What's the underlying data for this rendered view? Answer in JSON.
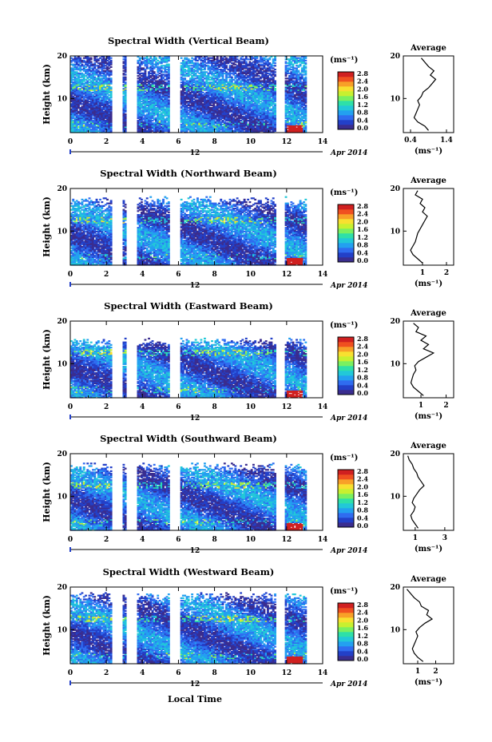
{
  "xlabel": "Local Time",
  "ylabel": "Height (km)",
  "units": "(ms⁻¹)",
  "avg_title": "Average",
  "date_tick": "12",
  "date_label": "Apr 2014",
  "x_ticks": [
    "0",
    "2",
    "4",
    "6",
    "8",
    "10",
    "12",
    "14"
  ],
  "y_ticks": [
    "10",
    "20"
  ],
  "cbar_ticks": [
    "0.0",
    "0.4",
    "0.8",
    "1.2",
    "1.6",
    "2.0",
    "2.4",
    "2.8"
  ],
  "colors": {
    "cmap": [
      "#3a2d8f",
      "#2340c8",
      "#2f6cf0",
      "#23a0f0",
      "#22c8d8",
      "#2ee0a8",
      "#7af060",
      "#c8f030",
      "#f8e030",
      "#f8a028",
      "#f05020",
      "#d02020"
    ]
  },
  "chart_data": [
    {
      "type": "heatmap",
      "title": "Spectral Width (Vertical Beam)",
      "xlim": [
        0,
        14
      ],
      "ylim": [
        2,
        20
      ],
      "zlim": [
        0,
        2.8
      ],
      "gaps": [
        [
          2.3,
          2.9
        ],
        [
          3.1,
          3.7
        ],
        [
          5.5,
          6.1
        ],
        [
          11.4,
          11.9
        ]
      ],
      "avg_xticks": [
        "0.4",
        "1.4"
      ],
      "avg_xlim": [
        0.2,
        1.6
      ],
      "avg_profile": [
        [
          0.9,
          2.5
        ],
        [
          0.8,
          3.5
        ],
        [
          0.6,
          4.5
        ],
        [
          0.5,
          5.5
        ],
        [
          0.55,
          6.5
        ],
        [
          0.6,
          7.5
        ],
        [
          0.65,
          8.5
        ],
        [
          0.6,
          9.5
        ],
        [
          0.7,
          10.5
        ],
        [
          0.75,
          11.5
        ],
        [
          0.9,
          12.5
        ],
        [
          1.0,
          13.5
        ],
        [
          1.1,
          14.5
        ],
        [
          0.95,
          15.5
        ],
        [
          1.05,
          16.5
        ],
        [
          0.9,
          17.5
        ],
        [
          0.8,
          18.5
        ],
        [
          0.7,
          19.5
        ]
      ]
    },
    {
      "type": "heatmap",
      "title": "Spectral Width (Northward Beam)",
      "xlim": [
        0,
        14
      ],
      "ylim": [
        2,
        20
      ],
      "zlim": [
        0,
        2.8
      ],
      "gaps": [
        [
          2.3,
          2.9
        ],
        [
          3.1,
          3.7
        ],
        [
          5.5,
          6.1
        ],
        [
          11.4,
          11.9
        ]
      ],
      "avg_xticks": [
        "1",
        "2"
      ],
      "avg_xlim": [
        0.2,
        2.3
      ],
      "avg_profile": [
        [
          1.0,
          2.5
        ],
        [
          0.8,
          3.5
        ],
        [
          0.6,
          4.5
        ],
        [
          0.5,
          5.5
        ],
        [
          0.6,
          6.5
        ],
        [
          0.7,
          7.5
        ],
        [
          0.75,
          8.5
        ],
        [
          0.8,
          9.5
        ],
        [
          0.9,
          10.5
        ],
        [
          1.0,
          11.5
        ],
        [
          1.1,
          12.5
        ],
        [
          1.2,
          13.5
        ],
        [
          1.0,
          14.5
        ],
        [
          1.1,
          15.5
        ],
        [
          0.9,
          16.5
        ],
        [
          1.0,
          17.5
        ],
        [
          0.7,
          18.5
        ],
        [
          0.8,
          19.5
        ]
      ]
    },
    {
      "type": "heatmap",
      "title": "Spectral Width (Eastward Beam)",
      "xlim": [
        0,
        14
      ],
      "ylim": [
        2,
        20
      ],
      "zlim": [
        0,
        2.8
      ],
      "gaps": [
        [
          2.3,
          2.9
        ],
        [
          3.1,
          3.7
        ],
        [
          5.5,
          6.1
        ],
        [
          11.4,
          11.9
        ]
      ],
      "avg_xticks": [
        "1",
        "2"
      ],
      "avg_xlim": [
        0.3,
        2.3
      ],
      "avg_profile": [
        [
          1.1,
          2.5
        ],
        [
          0.9,
          3.5
        ],
        [
          0.7,
          4.5
        ],
        [
          0.6,
          5.5
        ],
        [
          0.65,
          6.5
        ],
        [
          0.7,
          7.5
        ],
        [
          0.8,
          8.5
        ],
        [
          0.75,
          9.5
        ],
        [
          0.9,
          10.5
        ],
        [
          1.2,
          11.5
        ],
        [
          1.5,
          12.5
        ],
        [
          1.1,
          13.5
        ],
        [
          1.3,
          14.5
        ],
        [
          1.0,
          15.5
        ],
        [
          1.2,
          16.5
        ],
        [
          0.8,
          17.5
        ],
        [
          0.9,
          18.5
        ],
        [
          0.7,
          19.5
        ]
      ]
    },
    {
      "type": "heatmap",
      "title": "Spectral Width (Southward Beam)",
      "xlim": [
        0,
        14
      ],
      "ylim": [
        2,
        20
      ],
      "zlim": [
        0,
        2.8
      ],
      "gaps": [
        [
          2.3,
          2.9
        ],
        [
          3.1,
          3.7
        ],
        [
          5.5,
          6.1
        ],
        [
          11.4,
          11.9
        ]
      ],
      "avg_xticks": [
        "1",
        "3"
      ],
      "avg_xlim": [
        0.2,
        3.6
      ],
      "avg_profile": [
        [
          1.2,
          2.5
        ],
        [
          1.0,
          3.5
        ],
        [
          0.8,
          4.5
        ],
        [
          0.7,
          5.5
        ],
        [
          0.9,
          6.5
        ],
        [
          1.0,
          7.5
        ],
        [
          0.8,
          8.5
        ],
        [
          0.9,
          9.5
        ],
        [
          1.1,
          10.5
        ],
        [
          1.3,
          11.5
        ],
        [
          1.6,
          12.5
        ],
        [
          1.4,
          13.5
        ],
        [
          1.2,
          14.5
        ],
        [
          1.1,
          15.5
        ],
        [
          0.9,
          16.5
        ],
        [
          0.8,
          17.5
        ],
        [
          0.6,
          18.5
        ],
        [
          0.5,
          19.5
        ]
      ]
    },
    {
      "type": "heatmap",
      "title": "Spectral Width (Westward Beam)",
      "xlim": [
        0,
        14
      ],
      "ylim": [
        2,
        20
      ],
      "zlim": [
        0,
        2.8
      ],
      "gaps": [
        [
          2.3,
          2.9
        ],
        [
          3.1,
          3.7
        ],
        [
          5.5,
          6.1
        ],
        [
          11.4,
          11.9
        ]
      ],
      "avg_xticks": [
        "1",
        "2"
      ],
      "avg_xlim": [
        0.2,
        3.0
      ],
      "avg_profile": [
        [
          1.3,
          2.5
        ],
        [
          1.0,
          3.5
        ],
        [
          0.8,
          4.5
        ],
        [
          0.7,
          5.5
        ],
        [
          0.8,
          6.5
        ],
        [
          0.9,
          7.5
        ],
        [
          1.0,
          8.5
        ],
        [
          0.9,
          9.5
        ],
        [
          1.1,
          10.5
        ],
        [
          1.4,
          11.5
        ],
        [
          1.8,
          12.5
        ],
        [
          1.5,
          13.5
        ],
        [
          1.6,
          14.5
        ],
        [
          1.2,
          15.5
        ],
        [
          1.1,
          16.5
        ],
        [
          0.8,
          17.5
        ],
        [
          0.6,
          18.5
        ],
        [
          0.4,
          19.5
        ]
      ]
    }
  ]
}
